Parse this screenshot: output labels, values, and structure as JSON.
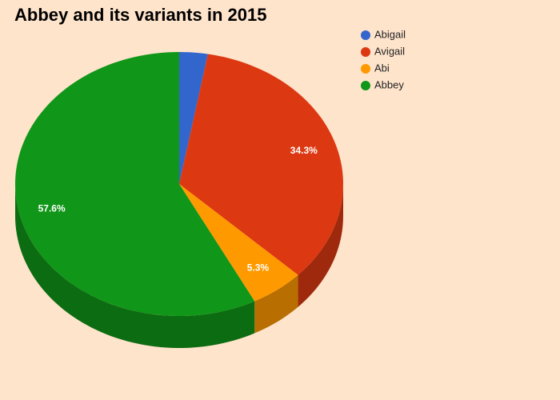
{
  "chart_data": {
    "type": "pie3d",
    "title": "Abbey and its variants in 2015",
    "categories": [
      "Abigail",
      "Avigail",
      "Abi",
      "Abbey"
    ],
    "values": [
      2.8,
      34.3,
      5.3,
      57.6
    ],
    "value_labels": [
      null,
      "34.3%",
      "5.3%",
      "57.6%"
    ],
    "colors": [
      "#3366cc",
      "#dc3912",
      "#ff9900",
      "#109618"
    ],
    "legend": "top-right"
  }
}
